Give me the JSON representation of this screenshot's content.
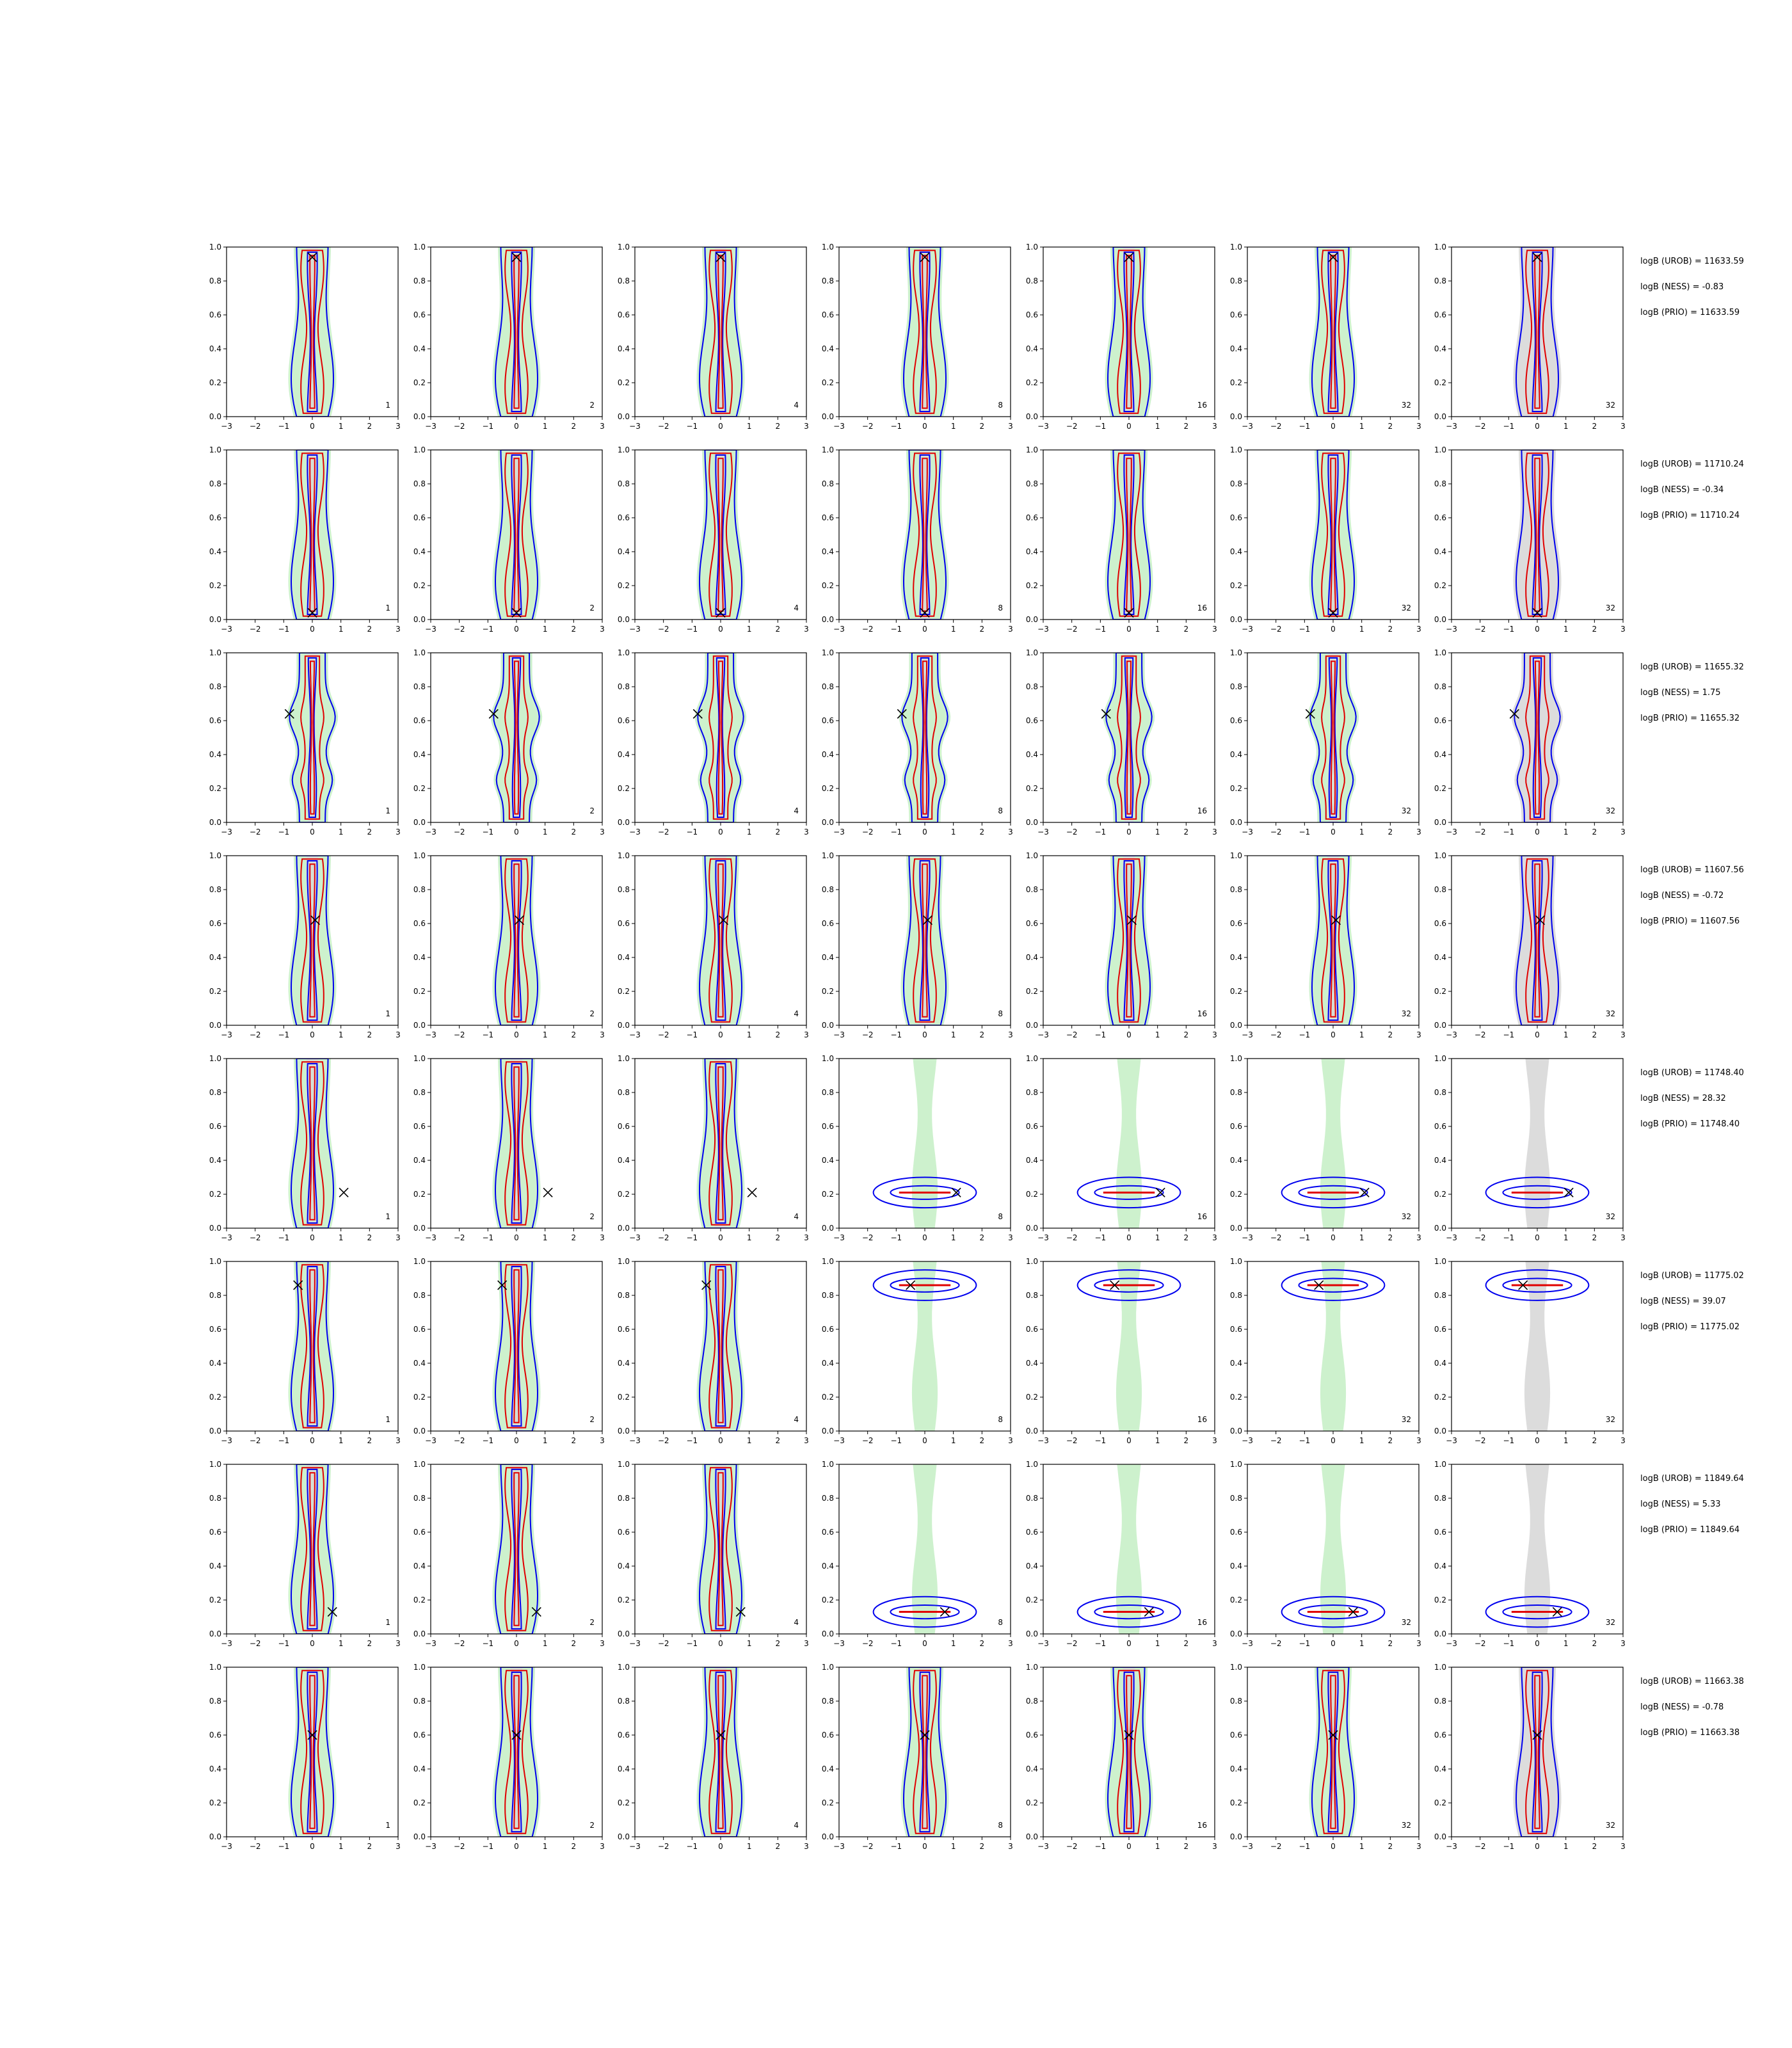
{
  "chart_data": {
    "type": "contour-grid",
    "x_ticks": [
      "−3",
      "−2",
      "−1",
      "0",
      "1",
      "2",
      "3"
    ],
    "y_ticks": [
      "0.0",
      "0.2",
      "0.4",
      "0.6",
      "0.8",
      "1.0"
    ],
    "xlim": [
      -3,
      3
    ],
    "ylim": [
      0,
      1
    ],
    "colors": {
      "filled": "#c8efc8",
      "blue": "#0000ee",
      "red": "#e00000",
      "grey": "#d8d8d8",
      "marker": "#000000"
    },
    "column_labels": [
      "1",
      "2",
      "4",
      "8",
      "16",
      "32",
      "32"
    ],
    "rows": [
      {
        "marker": {
          "x": 0.0,
          "y": 0.94
        },
        "logB_UROB": "logB (UROB) = 11633.59",
        "logB_NESS": "logB (NESS) = -0.83",
        "logB_PRIO": "logB (PRIO) = 11633.59",
        "shape": "vertical"
      },
      {
        "marker": {
          "x": 0.0,
          "y": 0.04
        },
        "logB_UROB": "logB (UROB) = 11710.24",
        "logB_NESS": "logB (NESS) = -0.34",
        "logB_PRIO": "logB (PRIO) = 11710.24",
        "shape": "vertical"
      },
      {
        "marker": {
          "x": -0.8,
          "y": 0.64
        },
        "logB_UROB": "logB (UROB) = 11655.32",
        "logB_NESS": "logB (NESS) = 1.75",
        "logB_PRIO": "logB (PRIO) = 11655.32",
        "shape": "bulge"
      },
      {
        "marker": {
          "x": 0.1,
          "y": 0.62
        },
        "logB_UROB": "logB (UROB) = 11607.56",
        "logB_NESS": "logB (NESS) = -0.72",
        "logB_PRIO": "logB (PRIO) = 11607.56",
        "shape": "vertical"
      },
      {
        "marker": {
          "x": 1.1,
          "y": 0.21
        },
        "logB_UROB": "logB (UROB) = 11748.40",
        "logB_NESS": "logB (NESS) = 28.32",
        "logB_PRIO": "logB (PRIO) = 11748.40",
        "shape": "horizontal-low"
      },
      {
        "marker": {
          "x": -0.5,
          "y": 0.86
        },
        "logB_UROB": "logB (UROB) = 11775.02",
        "logB_NESS": "logB (NESS) = 39.07",
        "logB_PRIO": "logB (PRIO) = 11775.02",
        "shape": "horizontal-high"
      },
      {
        "marker": {
          "x": 0.7,
          "y": 0.13
        },
        "logB_UROB": "logB (UROB) = 11849.64",
        "logB_NESS": "logB (NESS) = 5.33",
        "logB_PRIO": "logB (PRIO) = 11849.64",
        "shape": "horizontal-bottom"
      },
      {
        "marker": {
          "x": 0.0,
          "y": 0.6
        },
        "logB_UROB": "logB (UROB) = 11663.38",
        "logB_NESS": "logB (NESS) = -0.78",
        "logB_PRIO": "logB (PRIO) = 11663.38",
        "shape": "vertical"
      }
    ]
  }
}
